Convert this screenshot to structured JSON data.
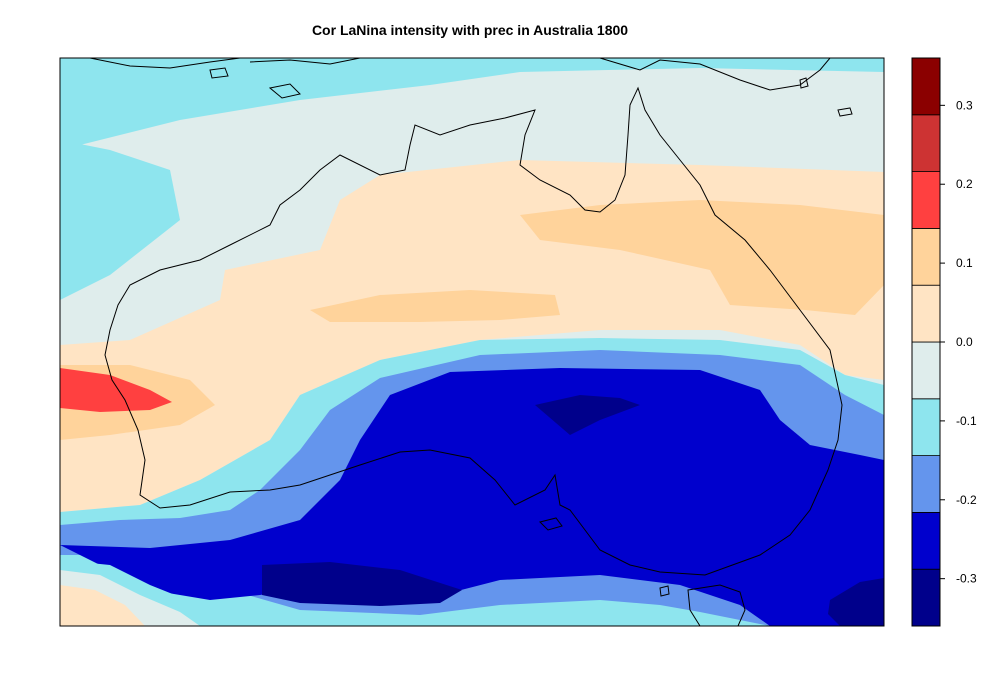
{
  "title": "Cor LaNina intensity with prec in Australia 1800",
  "chart_data": {
    "type": "heatmap",
    "title": "Cor LaNina intensity with prec in Australia 1800",
    "colorbar": {
      "levels": [
        -0.35,
        -0.3,
        -0.25,
        -0.2,
        -0.15,
        -0.1,
        -0.05,
        0.0,
        0.05,
        0.1,
        0.15,
        0.2,
        0.25,
        0.3,
        0.35
      ],
      "colors": [
        "#00008B",
        "#0000CD",
        "#6495ED",
        "#8EE5EE",
        "#DFEDEC",
        "#FFE4C4",
        "#FFD39B",
        "#FF4040",
        "#CD3333",
        "#8B0000"
      ],
      "ticks": [
        -0.3,
        -0.2,
        -0.1,
        0.0,
        0.1,
        0.2,
        0.3
      ],
      "tick_labels": [
        "-0.3",
        "-0.2",
        "-0.1",
        "0.0",
        "0.1",
        "0.2",
        "0.3"
      ],
      "range": [
        -0.36,
        0.36
      ]
    }
  }
}
